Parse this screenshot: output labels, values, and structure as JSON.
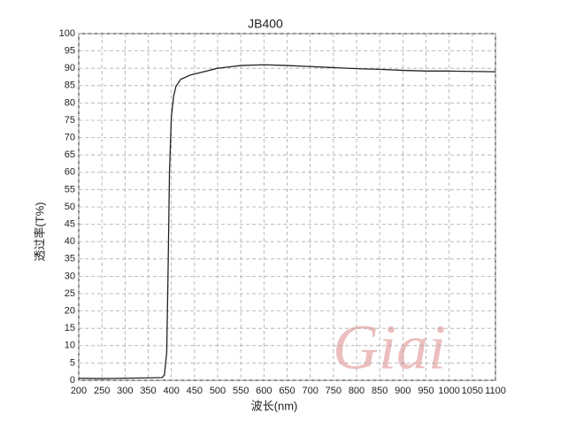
{
  "chart_data": {
    "type": "line",
    "title": "JB400",
    "xlabel": "波长(nm)",
    "ylabel": "透过率(T%)",
    "watermark": "Giai",
    "x": [
      200,
      250,
      300,
      350,
      380,
      385,
      390,
      393,
      396,
      400,
      405,
      410,
      420,
      440,
      470,
      500,
      550,
      600,
      650,
      700,
      750,
      800,
      850,
      900,
      950,
      1000,
      1050,
      1100
    ],
    "series": [
      {
        "name": "JB400",
        "color": "#222222",
        "values": [
          0.6,
          0.5,
          0.6,
          0.7,
          0.8,
          1.5,
          8,
          32,
          60,
          76,
          82,
          84.8,
          86.8,
          88,
          89,
          90,
          90.8,
          91,
          90.8,
          90.5,
          90.2,
          89.9,
          89.7,
          89.4,
          89.2,
          89.2,
          89.1,
          89
        ]
      }
    ],
    "xlim": [
      200,
      1100
    ],
    "ylim": [
      0,
      100
    ],
    "xticks": [
      200,
      250,
      300,
      350,
      400,
      450,
      500,
      550,
      600,
      650,
      700,
      750,
      800,
      850,
      900,
      950,
      1000,
      1050,
      1100
    ],
    "yticks": [
      0,
      5,
      10,
      15,
      20,
      25,
      30,
      35,
      40,
      45,
      50,
      55,
      60,
      65,
      70,
      75,
      80,
      85,
      90,
      95,
      100
    ],
    "grid": true
  }
}
